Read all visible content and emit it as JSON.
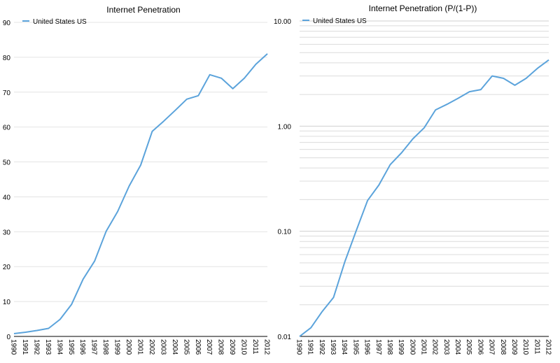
{
  "chart_data": [
    {
      "type": "line",
      "title": "Internet Penetration",
      "xlabel": "",
      "ylabel": "",
      "ylim": [
        0,
        90
      ],
      "yticks": [
        "0",
        "10",
        "20",
        "30",
        "40",
        "50",
        "60",
        "70",
        "80",
        "90"
      ],
      "grid": true,
      "legend_position": "top-left",
      "line_color": "#5BA3DB",
      "series": [
        {
          "name": "United States US",
          "x": [
            "1990",
            "1991",
            "1992",
            "1993",
            "1994",
            "1995",
            "1996",
            "1997",
            "1998",
            "1999",
            "2000",
            "2001",
            "2002",
            "2003",
            "2004",
            "2005",
            "2006",
            "2007",
            "2008",
            "2009",
            "2010",
            "2011",
            "2012"
          ],
          "values": [
            0.8,
            1.2,
            1.7,
            2.3,
            4.9,
            9.2,
            16.4,
            21.6,
            30.1,
            35.8,
            43.1,
            49.1,
            58.8,
            61.7,
            64.8,
            68.0,
            69.0,
            75.0,
            74.0,
            71.0,
            74.0,
            78.0,
            81.0
          ]
        }
      ]
    },
    {
      "type": "line",
      "title": "Internet Penetration (P/(1-P))",
      "xlabel": "",
      "ylabel": "",
      "yscale": "log",
      "ylim": [
        0.01,
        10
      ],
      "yticks": [
        "0.01",
        "0.10",
        "1.00",
        "10.00"
      ],
      "grid": true,
      "legend_position": "top-left",
      "line_color": "#5BA3DB",
      "series": [
        {
          "name": "United States US",
          "x": [
            "1990",
            "1991",
            "1992",
            "1993",
            "1994",
            "1995",
            "1996",
            "1997",
            "1998",
            "1999",
            "2000",
            "2001",
            "2002",
            "2003",
            "2004",
            "2005",
            "2006",
            "2007",
            "2008",
            "2009",
            "2010",
            "2011",
            "2012"
          ],
          "values": [
            0.0085,
            0.0121,
            0.0173,
            0.0235,
            0.0515,
            0.1013,
            0.1962,
            0.2755,
            0.4306,
            0.5576,
            0.7575,
            0.9646,
            1.4272,
            1.611,
            1.8409,
            2.125,
            2.2258,
            3.0,
            2.8462,
            2.4483,
            2.8462,
            3.5455,
            4.2632
          ]
        }
      ]
    }
  ]
}
